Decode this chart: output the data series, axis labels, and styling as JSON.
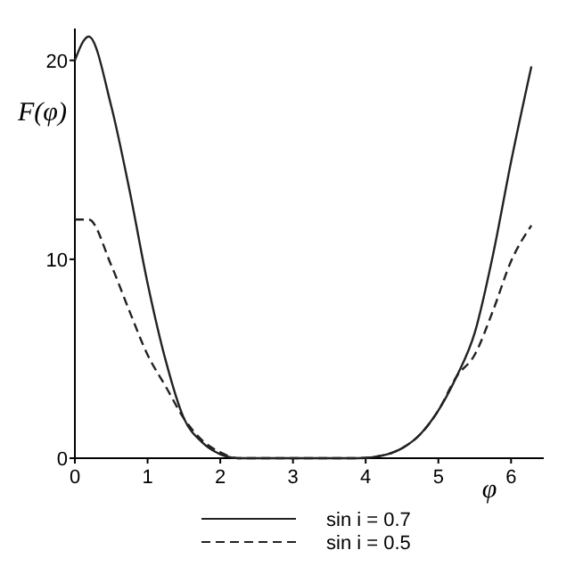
{
  "chart_data": {
    "type": "line",
    "xlabel": "φ",
    "ylabel": "F(φ)",
    "xlim": [
      0,
      6.45
    ],
    "ylim": [
      0,
      21.6
    ],
    "xticks": [
      0,
      1,
      2,
      3,
      4,
      5,
      6
    ],
    "yticks": [
      0,
      10,
      20
    ],
    "legend": "bottom",
    "x": [
      0,
      0.19,
      0.5,
      0.75,
      1,
      1.25,
      1.5,
      1.75,
      2,
      2.25,
      3,
      3.9,
      4.25,
      4.5,
      4.75,
      5,
      5.25,
      5.5,
      5.75,
      6,
      6.28
    ],
    "series": [
      {
        "name": "sin i = 0.7",
        "color": "#222222",
        "line_style": "solid",
        "values": [
          20,
          21.2,
          17.7,
          13.5,
          8.8,
          4.9,
          2.0,
          0.8,
          0.2,
          0,
          0,
          0,
          0.15,
          0.5,
          1.2,
          2.4,
          4.1,
          6.3,
          10.2,
          14.9,
          19.7
        ]
      },
      {
        "name": "sin i = 0.5",
        "color": "#222222",
        "line_style": "dashed",
        "values": [
          12,
          12,
          9.7,
          7.4,
          5.2,
          3.6,
          2.0,
          0.9,
          0.3,
          0,
          0,
          0,
          0.15,
          0.5,
          1.2,
          2.4,
          4.1,
          5.2,
          7.4,
          9.9,
          11.7
        ]
      }
    ]
  }
}
